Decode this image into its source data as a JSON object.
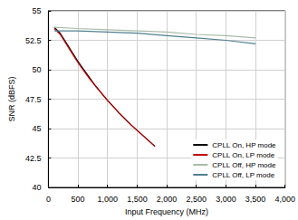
{
  "chart_data": {
    "type": "line",
    "x_label": "Input Frequency (MHz)",
    "y_label": "SNR (dBFS)",
    "xlim": [
      0,
      4000
    ],
    "xticks": [
      0,
      500,
      1000,
      1500,
      2000,
      2500,
      3000,
      3500,
      4000
    ],
    "ylim": [
      40,
      55
    ],
    "yticks": [
      40,
      42.5,
      45,
      47.5,
      50,
      52.5,
      55
    ],
    "grid": true,
    "legend": "lower right",
    "series": [
      {
        "name": "CPLL On, HP mode",
        "color": "#000000",
        "x": [
          100,
          200,
          300,
          400,
          500,
          600,
          700,
          800,
          900,
          1000,
          1200,
          1400,
          1600,
          1800
        ],
        "values": [
          53.6,
          53.1,
          52.3,
          51.5,
          50.7,
          50.0,
          49.3,
          48.6,
          48.0,
          47.4,
          46.3,
          45.3,
          44.4,
          43.5
        ]
      },
      {
        "name": "CPLL On, LP mode",
        "color": "#c00000",
        "x": [
          100,
          200,
          300,
          400,
          500,
          600,
          700,
          800,
          900,
          1000,
          1200,
          1400,
          1600,
          1800
        ],
        "values": [
          53.5,
          53.0,
          52.2,
          51.4,
          50.6,
          49.9,
          49.2,
          48.6,
          48.0,
          47.4,
          46.3,
          45.3,
          44.4,
          43.5
        ]
      },
      {
        "name": "CPLL Off, HP mode",
        "color": "#a9bba9",
        "x": [
          100,
          500,
          1000,
          1500,
          2000,
          2500,
          3000,
          3500
        ],
        "values": [
          53.6,
          53.5,
          53.4,
          53.3,
          53.2,
          53.0,
          52.9,
          52.7
        ]
      },
      {
        "name": "CPLL Off, LP mode",
        "color": "#4f7f8f",
        "x": [
          100,
          500,
          1000,
          1500,
          2000,
          2500,
          3000,
          3500
        ],
        "values": [
          53.3,
          53.3,
          53.2,
          53.1,
          52.9,
          52.7,
          52.5,
          52.2
        ]
      }
    ]
  }
}
